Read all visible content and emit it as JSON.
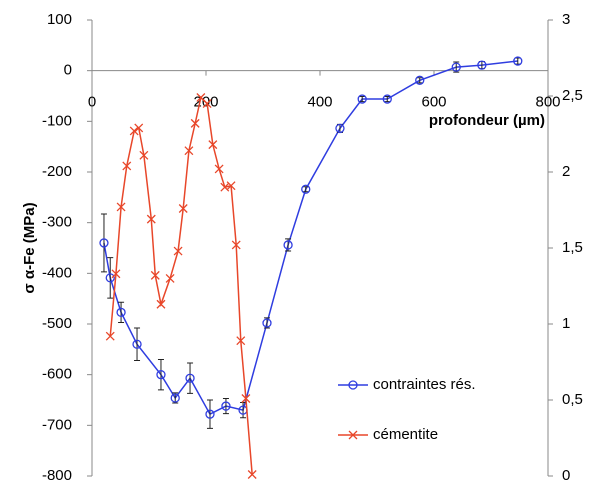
{
  "chart_data": {
    "type": "line",
    "xlabel": "profondeur (µm)",
    "ylabel": "σ α-Fe (MPa)",
    "xlim": [
      0,
      800
    ],
    "xticks": [
      0,
      200,
      400,
      600,
      800
    ],
    "ylim": [
      -800,
      100
    ],
    "yticks": [
      -800,
      -700,
      -600,
      -500,
      -400,
      -300,
      -200,
      -100,
      0,
      100
    ],
    "y2lim": [
      0,
      3
    ],
    "y2ticks": [
      0,
      {
        "value": 0.5,
        "label": "0,5"
      },
      1,
      {
        "value": 1.5,
        "label": "1,5"
      },
      2,
      {
        "value": 2.5,
        "label": "2,5"
      },
      3
    ],
    "series": [
      {
        "name": "contraintes rés.",
        "color": "#2f3de0",
        "marker": "circle",
        "x": [
          21,
          32,
          51,
          79,
          121,
          146,
          172,
          207,
          235,
          265,
          307,
          344,
          375,
          435,
          474,
          518,
          575,
          639,
          684,
          747
        ],
        "values": [
          -340,
          -409,
          -477,
          -540,
          -600,
          -646,
          -607,
          -678,
          -662,
          -670,
          -498,
          -344,
          -234,
          -114,
          -56,
          -56,
          -19,
          7,
          11,
          19
        ],
        "errors": [
          57,
          40,
          20,
          32,
          30,
          10,
          30,
          28,
          15,
          15,
          10,
          12,
          5,
          8,
          5,
          5,
          5,
          10,
          7,
          6
        ]
      },
      {
        "name": "cémentite",
        "color": "#e8472a",
        "marker": "x",
        "axis": "y2",
        "x": [
          32,
          42,
          51,
          61,
          74,
          82,
          91,
          104,
          111,
          121,
          137,
          151,
          160,
          170,
          181,
          191,
          202,
          212,
          223,
          233,
          244,
          253,
          261,
          270,
          281
        ],
        "values": [
          0.92,
          1.33,
          1.77,
          2.04,
          2.27,
          2.29,
          2.11,
          1.69,
          1.32,
          1.13,
          1.3,
          1.48,
          1.76,
          2.14,
          2.32,
          2.49,
          2.45,
          2.18,
          2.02,
          1.9,
          1.91,
          1.52,
          0.89,
          0.51,
          0.01
        ]
      }
    ]
  }
}
